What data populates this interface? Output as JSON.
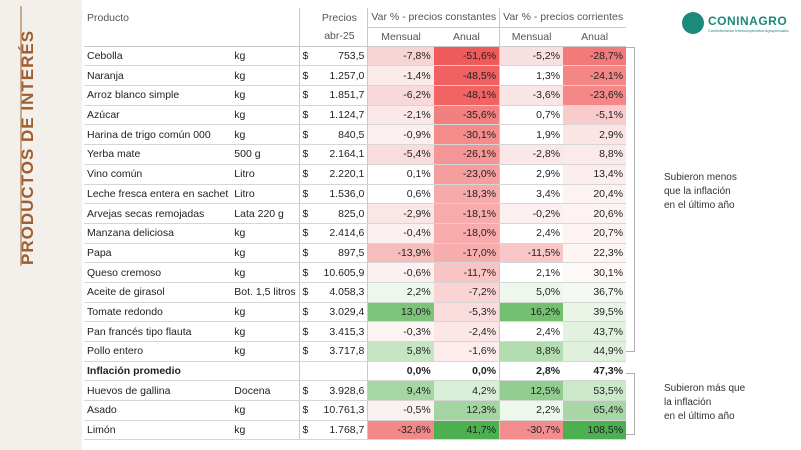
{
  "side_title": "PRODUCTOS DE INTERÉS",
  "logo": {
    "name": "CONINAGRO",
    "tagline": "Confederación Intercooperativa Agropecuaria"
  },
  "header": {
    "product": "Producto",
    "price": "Precios",
    "price_period": "abr-25",
    "group_constant": "Var % - precios constantes",
    "group_current": "Var % - precios corrientes",
    "monthly": "Mensual",
    "annual": "Anual"
  },
  "rows": [
    {
      "product": "Cebolla",
      "unit": "kg",
      "cur": "$",
      "price": "753,5",
      "cm": "-7,8%",
      "ca": "-51,6%",
      "pm": "-5,2%",
      "pa": "-28,7%",
      "cm_bg": "#f7d5d5",
      "ca_bg": "#ef5a5a",
      "pm_bg": "#f9e0e0",
      "pa_bg": "#f37a7a"
    },
    {
      "product": "Naranja",
      "unit": "kg",
      "cur": "$",
      "price": "1.257,0",
      "cm": "-1,4%",
      "ca": "-48,5%",
      "pm": "1,3%",
      "pa": "-24,1%",
      "cm_bg": "#fbeaea",
      "ca_bg": "#f06262",
      "pm_bg": "#ffffff",
      "pa_bg": "#f48686"
    },
    {
      "product": "Arroz blanco simple",
      "unit": "kg",
      "cur": "$",
      "price": "1.851,7",
      "cm": "-6,2%",
      "ca": "-48,1%",
      "pm": "-3,6%",
      "pa": "-23,6%",
      "cm_bg": "#f8d9d9",
      "ca_bg": "#f06464",
      "pm_bg": "#fae5e5",
      "pa_bg": "#f48888"
    },
    {
      "product": "Azúcar",
      "unit": "kg",
      "cur": "$",
      "price": "1.124,7",
      "cm": "-2,1%",
      "ca": "-35,6%",
      "pm": "0,7%",
      "pa": "-5,1%",
      "cm_bg": "#fbe8e8",
      "ca_bg": "#f38080",
      "pm_bg": "#ffffff",
      "pa_bg": "#f9cbcb"
    },
    {
      "product": "Harina de trigo común 000",
      "unit": "kg",
      "cur": "$",
      "price": "840,5",
      "cm": "-0,9%",
      "ca": "-30,1%",
      "pm": "1,9%",
      "pa": "2,9%",
      "cm_bg": "#fcefef",
      "ca_bg": "#f48c8c",
      "pm_bg": "#ffffff",
      "pa_bg": "#fbe4e4"
    },
    {
      "product": "Yerba mate",
      "unit": "500 g",
      "cur": "$",
      "price": "2.164,1",
      "cm": "-5,4%",
      "ca": "-26,1%",
      "pm": "-2,8%",
      "pa": "8,8%",
      "cm_bg": "#f9dcdc",
      "ca_bg": "#f59595",
      "pm_bg": "#fae7e7",
      "pa_bg": "#fce9e9"
    },
    {
      "product": "Vino común",
      "unit": "Litro",
      "cur": "$",
      "price": "2.220,1",
      "cm": "0,1%",
      "ca": "-23,0%",
      "pm": "2,9%",
      "pa": "13,4%",
      "cm_bg": "#ffffff",
      "ca_bg": "#f69d9d",
      "pm_bg": "#ffffff",
      "pa_bg": "#fdeeee"
    },
    {
      "product": "Leche fresca entera en sachet",
      "unit": "Litro",
      "cur": "$",
      "price": "1.536,0",
      "cm": "0,6%",
      "ca": "-18,3%",
      "pm": "3,4%",
      "pa": "20,4%",
      "cm_bg": "#ffffff",
      "ca_bg": "#f7aaaa",
      "pm_bg": "#ffffff",
      "pa_bg": "#fdf3f3"
    },
    {
      "product": "Arvejas secas remojadas",
      "unit": "Lata 220 g",
      "cur": "$",
      "price": "825,0",
      "cm": "-2,9%",
      "ca": "-18,1%",
      "pm": "-0,2%",
      "pa": "20,6%",
      "cm_bg": "#fae6e6",
      "ca_bg": "#f7abab",
      "pm_bg": "#fcefef",
      "pa_bg": "#fdf3f3"
    },
    {
      "product": "Manzana deliciosa",
      "unit": "kg",
      "cur": "$",
      "price": "2.414,6",
      "cm": "-0,4%",
      "ca": "-18,0%",
      "pm": "2,4%",
      "pa": "20,7%",
      "cm_bg": "#fcf1f1",
      "ca_bg": "#f7abab",
      "pm_bg": "#ffffff",
      "pa_bg": "#fdf3f3"
    },
    {
      "product": "Papa",
      "unit": "kg",
      "cur": "$",
      "price": "897,5",
      "cm": "-13,9%",
      "ca": "-17,0%",
      "pm": "-11,5%",
      "pa": "22,3%",
      "cm_bg": "#f6bdbd",
      "ca_bg": "#f7adad",
      "pm_bg": "#f8c6c6",
      "pa_bg": "#fdf4f4"
    },
    {
      "product": "Queso cremoso",
      "unit": "kg",
      "cur": "$",
      "price": "10.605,9",
      "cm": "-0,6%",
      "ca": "-11,7%",
      "pm": "2,1%",
      "pa": "30,1%",
      "cm_bg": "#fcf0f0",
      "ca_bg": "#f9c4c4",
      "pm_bg": "#ffffff",
      "pa_bg": "#fef8f8"
    },
    {
      "product": "Aceite de girasol",
      "unit": "Bot. 1,5 litros",
      "cur": "$",
      "price": "4.058,3",
      "cm": "2,2%",
      "ca": "-7,2%",
      "pm": "5,0%",
      "pa": "36,7%",
      "cm_bg": "#eef7ec",
      "ca_bg": "#fad4d4",
      "pm_bg": "#eef7ec",
      "pa_bg": "#f4faf3"
    },
    {
      "product": "Tomate redondo",
      "unit": "kg",
      "cur": "$",
      "price": "3.029,4",
      "cm": "13,0%",
      "ca": "-5,3%",
      "pm": "16,2%",
      "pa": "39,5%",
      "cm_bg": "#7cc47a",
      "ca_bg": "#fbdcdc",
      "pm_bg": "#72c070",
      "pa_bg": "#eaf5e8"
    },
    {
      "product": "Pan francés tipo flauta",
      "unit": "kg",
      "cur": "$",
      "price": "3.415,3",
      "cm": "-0,3%",
      "ca": "-2,4%",
      "pm": "2,4%",
      "pa": "43,7%",
      "cm_bg": "#fdf3f3",
      "ca_bg": "#fbe7e7",
      "pm_bg": "#ffffff",
      "pa_bg": "#e2f1e0"
    },
    {
      "product": "Pollo entero",
      "unit": "kg",
      "cur": "$",
      "price": "3.717,8",
      "cm": "5,8%",
      "ca": "-1,6%",
      "pm": "8,8%",
      "pa": "44,9%",
      "cm_bg": "#c5e5c3",
      "ca_bg": "#fcecec",
      "pm_bg": "#b3ddb1",
      "pa_bg": "#dff0dd"
    }
  ],
  "inflation_row": {
    "product": "Inflación promedio",
    "cm": "0,0%",
    "ca": "0,0%",
    "pm": "2,8%",
    "pa": "47,3%"
  },
  "rows_above": [
    {
      "product": "Huevos de gallina",
      "unit": "Docena",
      "cur": "$",
      "price": "3.928,6",
      "cm": "9,4%",
      "ca": "4,2%",
      "pm": "12,5%",
      "pa": "53,5%",
      "cm_bg": "#a5d6a3",
      "ca_bg": "#d9eed7",
      "pm_bg": "#92ce90",
      "pa_bg": "#cbe8c9"
    },
    {
      "product": "Asado",
      "unit": "kg",
      "cur": "$",
      "price": "10.761,3",
      "cm": "-0,5%",
      "ca": "12,3%",
      "pm": "2,2%",
      "pa": "65,4%",
      "cm_bg": "#fcf1f1",
      "ca_bg": "#a3d5a1",
      "pm_bg": "#eef7ec",
      "pa_bg": "#a7d7a5"
    },
    {
      "product": "Limón",
      "unit": "kg",
      "cur": "$",
      "price": "1.768,7",
      "cm": "-32,6%",
      "ca": "41,7%",
      "pm": "-30,7%",
      "pa": "108,5%",
      "cm_bg": "#f38888",
      "ca_bg": "#4caf50",
      "pm_bg": "#f38c8c",
      "pa_bg": "#4caf50"
    }
  ],
  "note_below": [
    "Subieron menos",
    "que la inflación",
    "en el último año"
  ],
  "note_above": [
    "Subieron más que",
    "la inflación",
    "en el último año"
  ]
}
